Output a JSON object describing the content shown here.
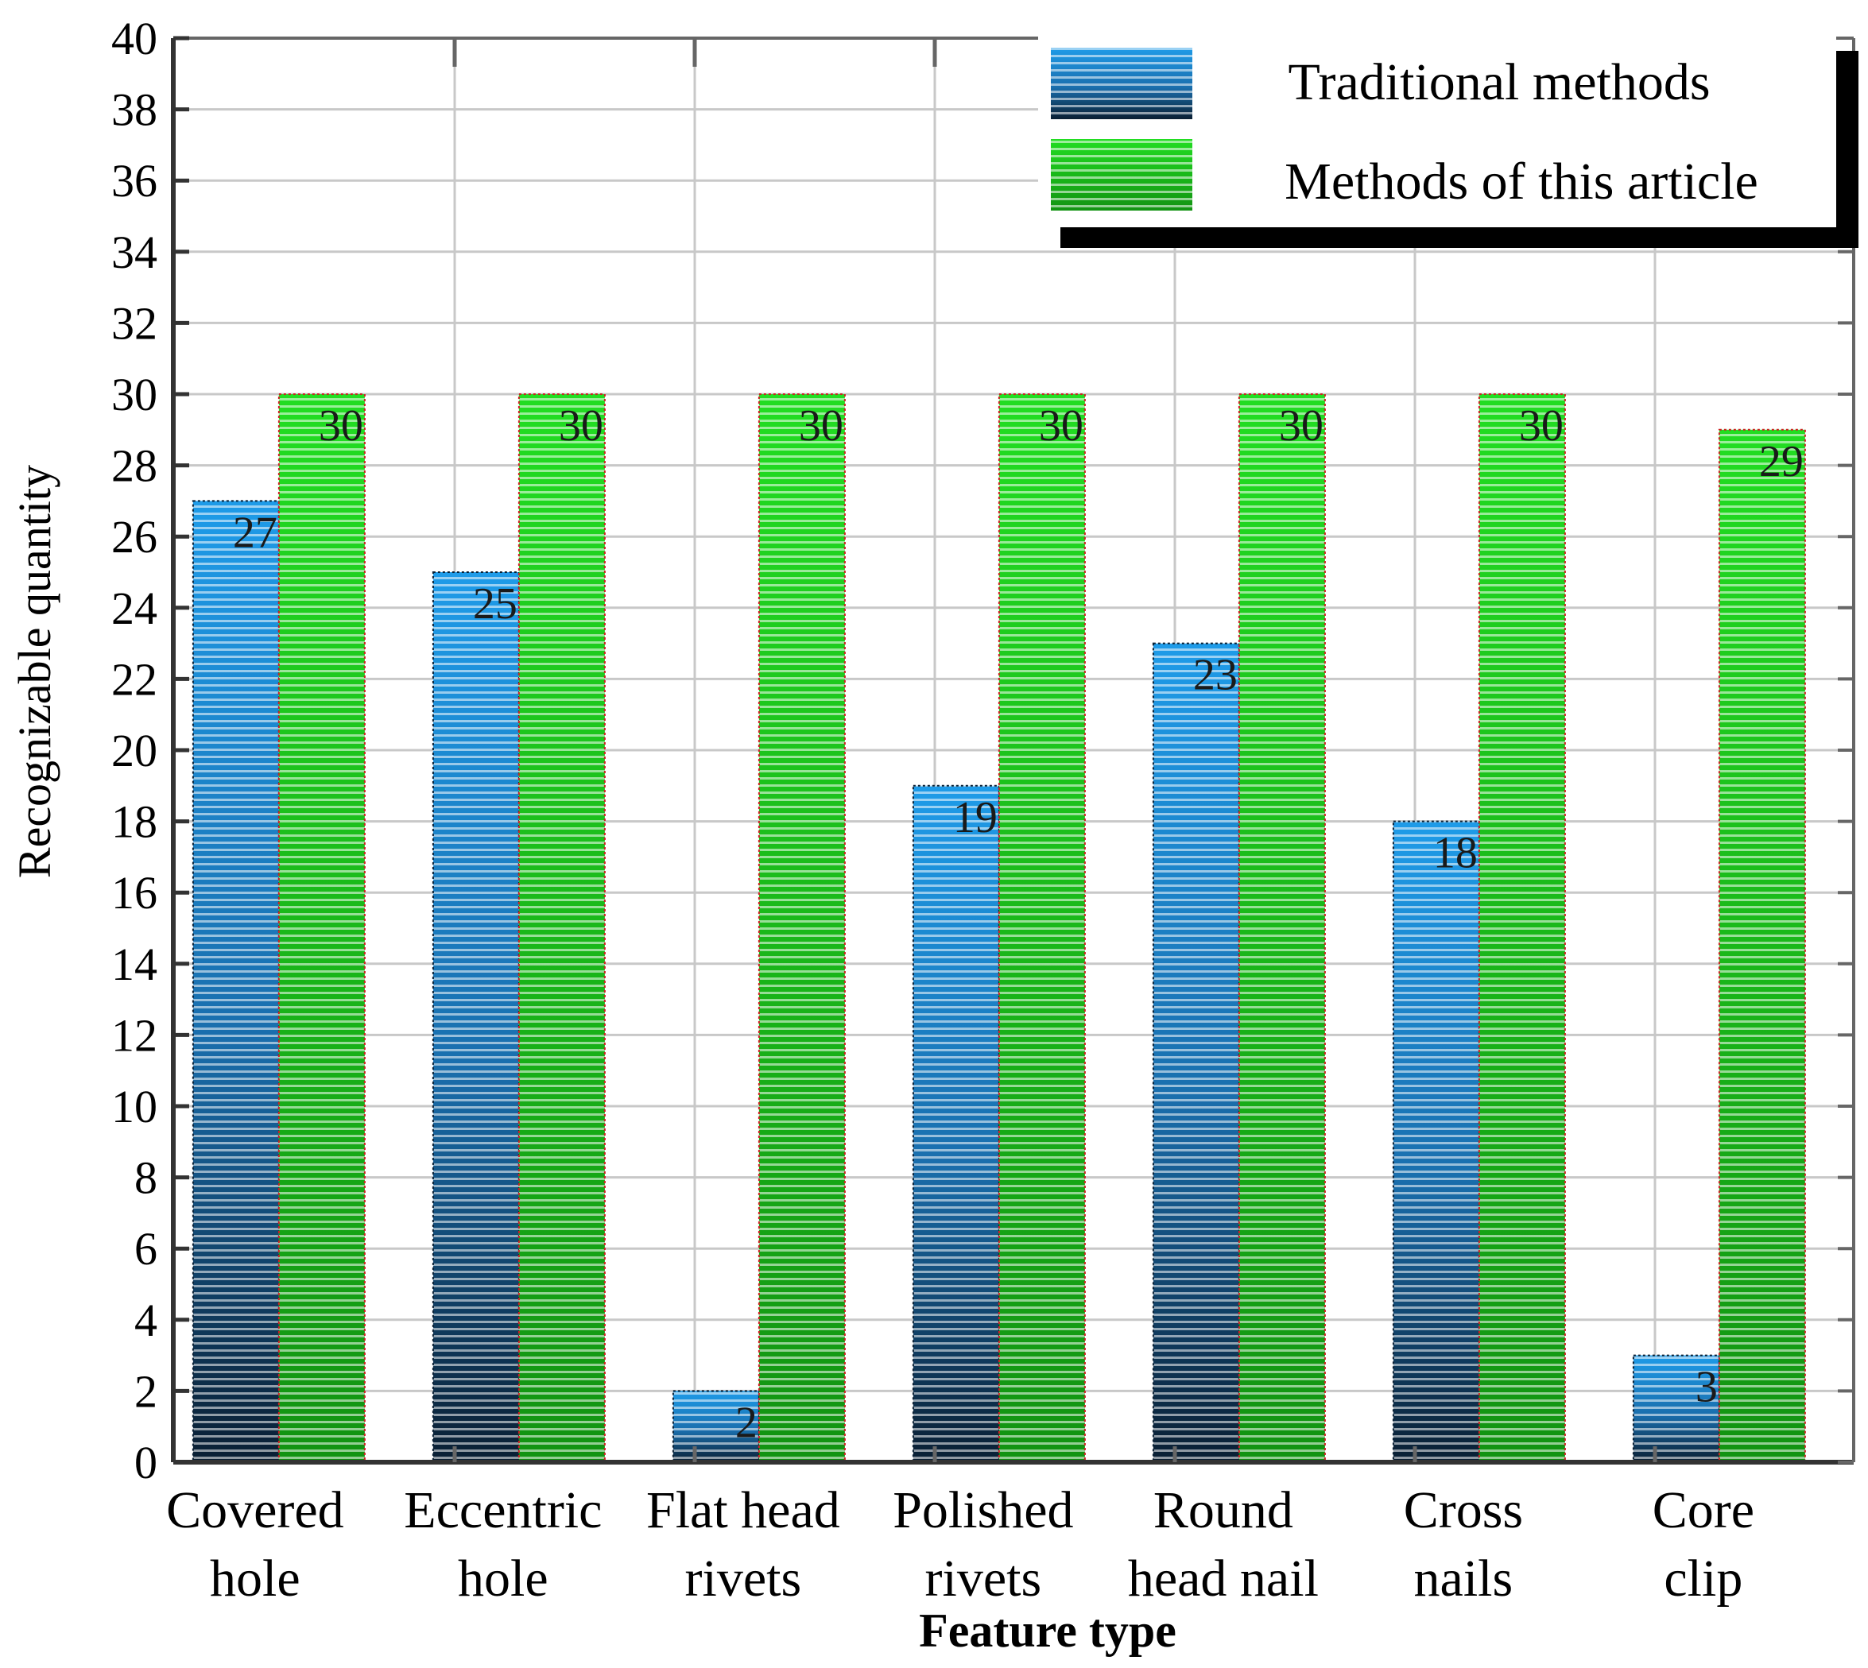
{
  "chart_data": {
    "type": "bar",
    "xlabel": "Feature type",
    "ylabel": "Recognizable quantity",
    "ylim": [
      0,
      40
    ],
    "ytick_step": 2,
    "grid": true,
    "legend_position": "top-right",
    "categories": [
      [
        "Covered",
        "hole"
      ],
      [
        "Eccentric",
        "hole"
      ],
      [
        "Flat head",
        "rivets"
      ],
      [
        "Polished",
        "rivets"
      ],
      [
        "Round",
        "head nail"
      ],
      [
        "Cross",
        "nails"
      ],
      [
        "Core",
        "clip"
      ]
    ],
    "series": [
      {
        "name": "Traditional methods",
        "values": [
          27,
          25,
          2,
          19,
          23,
          18,
          3
        ],
        "color_top": "#1e9be8",
        "color_bottom": "#0b2a45"
      },
      {
        "name": "Methods of this article",
        "values": [
          30,
          30,
          30,
          30,
          30,
          30,
          29
        ],
        "color_top": "#22dd22",
        "color_bottom": "#128a12"
      }
    ]
  }
}
